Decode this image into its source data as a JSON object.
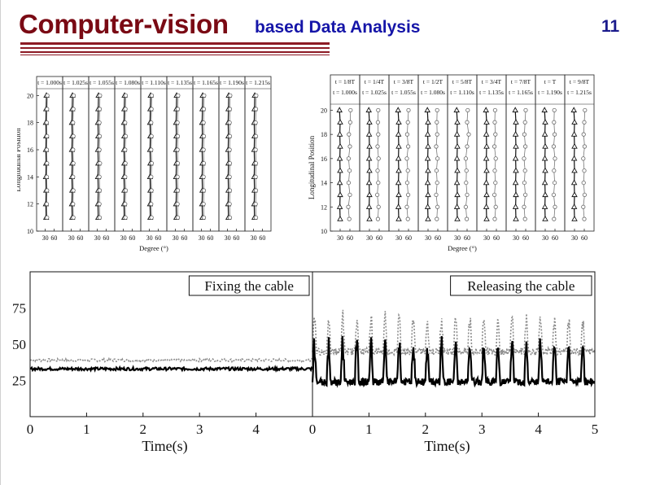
{
  "slide": {
    "title_main": "Computer-vision",
    "title_sub": "based Data Analysis",
    "slide_number": "11"
  },
  "colors": {
    "title_main": "#7a0a14",
    "title_sub": "#1515a8",
    "rule": "#8c1a24",
    "series_solid": "#000000",
    "series_dotted": "#888888"
  },
  "chart_data": [
    {
      "type": "scatter",
      "panel": "top-left",
      "subplot_labels": [
        "t = 1.000s",
        "t = 1.025s",
        "t = 1.055s",
        "t = 1.080s",
        "t = 1.110s",
        "t = 1.135s",
        "t = 1.165s",
        "t = 1.190s",
        "t = 1.215s"
      ],
      "xlabel": "Degree (°)",
      "ylabel": "Longitudinal Position",
      "x_ticks": [
        "30",
        "60"
      ],
      "y_ticks": [
        "10",
        "12",
        "14",
        "16",
        "18",
        "20"
      ],
      "ylim": [
        10,
        20.5
      ],
      "xlim": [
        0,
        90
      ],
      "positions": [
        11,
        12,
        13,
        14,
        15,
        16,
        17,
        18,
        19,
        20
      ],
      "series": [
        {
          "marker": "triangle",
          "values": [
            [
              33,
              32,
              33,
              32,
              33,
              32,
              33,
              32,
              33,
              34
            ],
            [
              33,
              32,
              33,
              32,
              33,
              32,
              33,
              32,
              33,
              34
            ],
            [
              33,
              32,
              33,
              32,
              33,
              32,
              33,
              32,
              33,
              34
            ],
            [
              33,
              32,
              33,
              32,
              33,
              32,
              33,
              32,
              33,
              34
            ],
            [
              33,
              32,
              33,
              32,
              33,
              32,
              33,
              32,
              33,
              34
            ],
            [
              33,
              32,
              33,
              32,
              33,
              32,
              33,
              32,
              33,
              34
            ],
            [
              33,
              32,
              33,
              32,
              33,
              32,
              33,
              32,
              33,
              34
            ],
            [
              33,
              32,
              33,
              32,
              33,
              32,
              33,
              32,
              33,
              34
            ],
            [
              33,
              32,
              33,
              32,
              33,
              32,
              33,
              32,
              33,
              34
            ]
          ]
        },
        {
          "marker": "circle",
          "values": [
            [
              36,
              35,
              36,
              35,
              36,
              35,
              36,
              35,
              36,
              37
            ],
            [
              37,
              36,
              37,
              36,
              37,
              36,
              37,
              36,
              37,
              38
            ],
            [
              38,
              37,
              38,
              37,
              39,
              37,
              38,
              37,
              38,
              39
            ],
            [
              37,
              36,
              38,
              36,
              37,
              36,
              38,
              36,
              37,
              38
            ],
            [
              37,
              36,
              37,
              36,
              38,
              36,
              37,
              36,
              37,
              38
            ],
            [
              38,
              37,
              38,
              37,
              38,
              37,
              38,
              37,
              38,
              39
            ],
            [
              38,
              37,
              38,
              37,
              38,
              37,
              38,
              37,
              38,
              39
            ],
            [
              38,
              37,
              38,
              37,
              38,
              37,
              38,
              37,
              38,
              39
            ],
            [
              38,
              37,
              38,
              37,
              38,
              37,
              38,
              37,
              38,
              39
            ]
          ]
        }
      ]
    },
    {
      "type": "scatter",
      "panel": "top-right",
      "subplot_labels": [
        [
          "t = 1/8T",
          "t = 1.000s"
        ],
        [
          "t = 1/4T",
          "t = 1.025s"
        ],
        [
          "t = 3/8T",
          "t = 1.055s"
        ],
        [
          "t = 1/2T",
          "t = 1.080s"
        ],
        [
          "t = 5/8T",
          "t = 1.110s"
        ],
        [
          "t = 3/4T",
          "t = 1.135s"
        ],
        [
          "t = 7/8T",
          "t = 1.165s"
        ],
        [
          "t = T",
          "t = 1.190s"
        ],
        [
          "t = 9/8T",
          "t = 1.215s"
        ]
      ],
      "xlabel": "Degree (°)",
      "ylabel": "Longitudinal Position",
      "x_ticks": [
        "30",
        "60"
      ],
      "y_ticks": [
        "10",
        "12",
        "14",
        "16",
        "18",
        "20"
      ],
      "ylim": [
        10,
        20.5
      ],
      "xlim": [
        0,
        90
      ],
      "positions": [
        11,
        12,
        13,
        14,
        15,
        16,
        17,
        18,
        19,
        20
      ],
      "series": [
        {
          "marker": "triangle",
          "values": [
            [
              30,
              29,
              30,
              29,
              30,
              29,
              30,
              29,
              30,
              28
            ],
            [
              30,
              29,
              30,
              29,
              30,
              29,
              30,
              29,
              30,
              28
            ],
            [
              30,
              29,
              30,
              29,
              30,
              29,
              30,
              29,
              30,
              28
            ],
            [
              30,
              29,
              30,
              29,
              30,
              29,
              30,
              29,
              30,
              28
            ],
            [
              30,
              29,
              30,
              29,
              30,
              29,
              30,
              29,
              30,
              28
            ],
            [
              30,
              29,
              30,
              29,
              30,
              29,
              30,
              29,
              30,
              28
            ],
            [
              30,
              29,
              30,
              29,
              30,
              29,
              30,
              29,
              30,
              28
            ],
            [
              30,
              29,
              30,
              29,
              30,
              29,
              30,
              29,
              30,
              28
            ],
            [
              30,
              29,
              30,
              29,
              30,
              29,
              30,
              29,
              30,
              28
            ]
          ]
        },
        {
          "marker": "circle",
          "values": [
            [
              58,
              55,
              60,
              56,
              59,
              56,
              60,
              57,
              61,
              62
            ],
            [
              56,
              58,
              54,
              57,
              55,
              58,
              55,
              57,
              56,
              57
            ],
            [
              58,
              55,
              59,
              56,
              58,
              55,
              59,
              56,
              58,
              60
            ],
            [
              57,
              59,
              55,
              58,
              56,
              59,
              55,
              58,
              57,
              58
            ],
            [
              59,
              56,
              60,
              57,
              58,
              56,
              60,
              65,
              60,
              62
            ],
            [
              55,
              58,
              54,
              57,
              55,
              58,
              54,
              57,
              55,
              56
            ],
            [
              58,
              55,
              59,
              56,
              58,
              55,
              59,
              56,
              58,
              60
            ],
            [
              57,
              60,
              56,
              59,
              57,
              60,
              56,
              59,
              57,
              58
            ],
            [
              60,
              57,
              61,
              58,
              60,
              57,
              61,
              58,
              60,
              62
            ]
          ]
        }
      ]
    },
    {
      "type": "line",
      "panel": "bottom",
      "xlabel": "Time(s)",
      "y_ticks": [
        "25",
        "50",
        "75"
      ],
      "ylim": [
        0,
        100
      ],
      "subplots": [
        {
          "annotation": "Fixing the cable",
          "xlim": [
            0,
            5
          ],
          "x_ticks": [
            "0",
            "1",
            "2",
            "3",
            "4"
          ],
          "series": [
            {
              "style": "solid",
              "level": 33,
              "noise": 2
            },
            {
              "style": "dotted",
              "level": 39,
              "noise": 2
            }
          ]
        },
        {
          "annotation": "Releasing the cable",
          "xlim": [
            0,
            5
          ],
          "x_ticks": [
            "0",
            "1",
            "2",
            "3",
            "4",
            "5"
          ],
          "series": [
            {
              "style": "solid",
              "baseline": 24,
              "peak": 50,
              "period": 0.25
            },
            {
              "style": "dotted",
              "baseline": 45,
              "peak": 68,
              "period": 0.25
            }
          ]
        }
      ]
    }
  ]
}
